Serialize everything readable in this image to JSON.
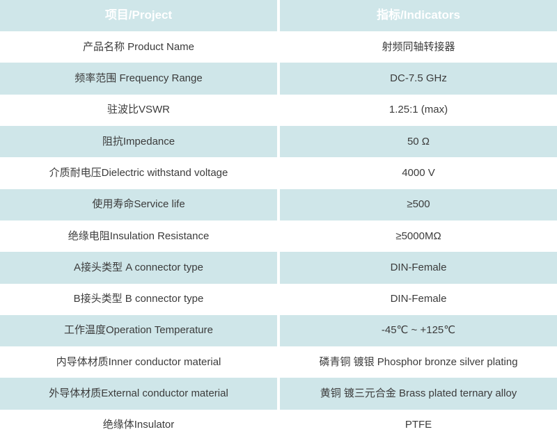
{
  "colors": {
    "header_bg": "#0A8595",
    "row_alt_bg": "#CFE6E9",
    "row_bg": "#FFFFFF",
    "text": "#3B3B3B",
    "header_text": "#FFFFFF",
    "divider": "#FFFFFF"
  },
  "table": {
    "header": {
      "project": "项目/Project",
      "indicators": "指标/Indicators"
    },
    "rows": [
      {
        "label": "产品名称 Product Name",
        "value": "射频同轴转接器"
      },
      {
        "label": "频率范围 Frequency Range",
        "value": "DC-7.5 GHz"
      },
      {
        "label": "驻波比VSWR",
        "value": "1.25:1 (max)"
      },
      {
        "label": "阻抗Impedance",
        "value": "50 Ω"
      },
      {
        "label": "介质耐电压Dielectric withstand voltage",
        "value": "4000 V"
      },
      {
        "label": "使用寿命Service life",
        "value": "≥500"
      },
      {
        "label": "绝缘电阻Insulation Resistance",
        "value": "≥5000MΩ"
      },
      {
        "label": "A接头类型 A connector type",
        "value": "DIN-Female"
      },
      {
        "label": "B接头类型 B connector type",
        "value": "DIN-Female"
      },
      {
        "label": "工作温度Operation Temperature",
        "value": "-45℃ ~ +125℃"
      },
      {
        "label": "内导体材质Inner conductor material",
        "value": "磷青铜 镀银 Phosphor bronze silver plating"
      },
      {
        "label": "外导体材质External conductor material",
        "value": "黄铜 镀三元合金 Brass plated ternary alloy"
      },
      {
        "label": "绝缘体Insulator",
        "value": "PTFE"
      }
    ]
  }
}
